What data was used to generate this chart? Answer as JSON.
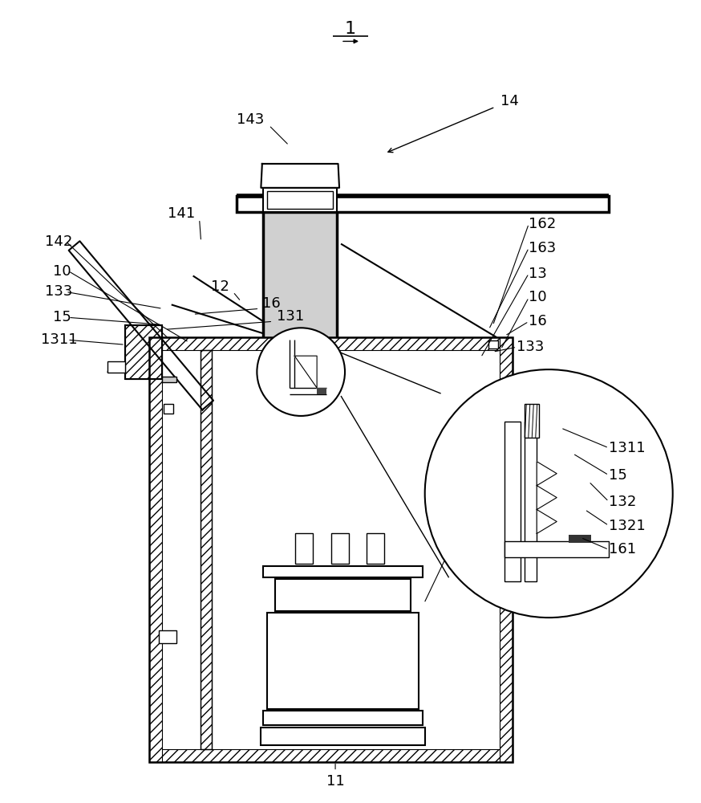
{
  "bg_color": "#ffffff",
  "fig_w": 8.74,
  "fig_h": 10.0,
  "dpi": 100
}
